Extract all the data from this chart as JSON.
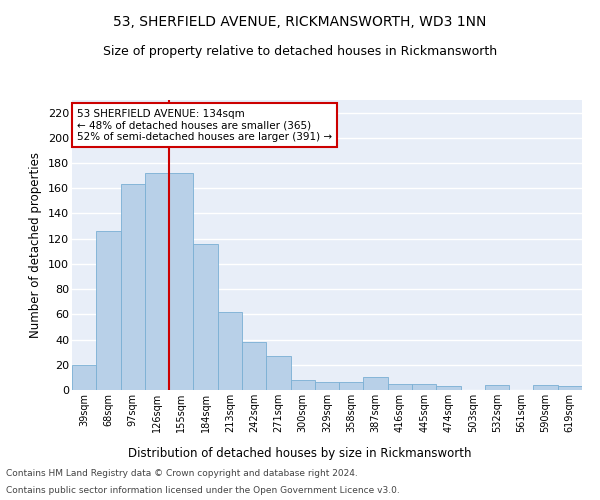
{
  "title": "53, SHERFIELD AVENUE, RICKMANSWORTH, WD3 1NN",
  "subtitle": "Size of property relative to detached houses in Rickmansworth",
  "xlabel": "Distribution of detached houses by size in Rickmansworth",
  "ylabel": "Number of detached properties",
  "categories": [
    "39sqm",
    "68sqm",
    "97sqm",
    "126sqm",
    "155sqm",
    "184sqm",
    "213sqm",
    "242sqm",
    "271sqm",
    "300sqm",
    "329sqm",
    "358sqm",
    "387sqm",
    "416sqm",
    "445sqm",
    "474sqm",
    "503sqm",
    "532sqm",
    "561sqm",
    "590sqm",
    "619sqm"
  ],
  "values": [
    20,
    126,
    163,
    172,
    172,
    116,
    62,
    38,
    27,
    8,
    6,
    6,
    10,
    5,
    5,
    3,
    0,
    4,
    0,
    4,
    3
  ],
  "bar_color": "#b8d0e8",
  "bar_edge_color": "#7aafd4",
  "vline_x_index": 3,
  "vline_color": "#cc0000",
  "annotation_text": "53 SHERFIELD AVENUE: 134sqm\n← 48% of detached houses are smaller (365)\n52% of semi-detached houses are larger (391) →",
  "annotation_box_color": "#ffffff",
  "annotation_box_edge": "#cc0000",
  "ylim": [
    0,
    230
  ],
  "yticks": [
    0,
    20,
    40,
    60,
    80,
    100,
    120,
    140,
    160,
    180,
    200,
    220
  ],
  "background_color": "#e8eef8",
  "grid_color": "#ffffff",
  "footer1": "Contains HM Land Registry data © Crown copyright and database right 2024.",
  "footer2": "Contains public sector information licensed under the Open Government Licence v3.0.",
  "title_fontsize": 10,
  "subtitle_fontsize": 9,
  "footer_fontsize": 6.5
}
